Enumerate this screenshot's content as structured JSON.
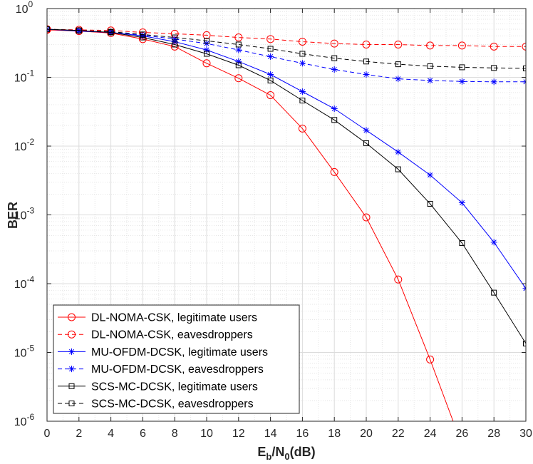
{
  "chart_data": {
    "type": "line",
    "title": "",
    "xlabel": {
      "base": "E",
      "sub1": "b",
      "mid": "/N",
      "sub2": "0",
      "tail": "(dB)"
    },
    "ylabel": "BER",
    "xlim": [
      0,
      30
    ],
    "ylim": [
      1e-06,
      1
    ],
    "yscale": "log",
    "grid": "on (major and minor)",
    "legend_position": "bottom-left",
    "x_ticks": [
      "0",
      "2",
      "4",
      "6",
      "8",
      "10",
      "12",
      "14",
      "16",
      "18",
      "20",
      "22",
      "24",
      "26",
      "28",
      "30"
    ],
    "y_ticks": [
      {
        "base": "10",
        "exp": "0"
      },
      {
        "base": "10",
        "exp": "-1"
      },
      {
        "base": "10",
        "exp": "-2"
      },
      {
        "base": "10",
        "exp": "-3"
      },
      {
        "base": "10",
        "exp": "-4"
      },
      {
        "base": "10",
        "exp": "-5"
      },
      {
        "base": "10",
        "exp": "-6"
      }
    ],
    "series": [
      {
        "name": "DL-NOMA-CSK, legitimate users",
        "color": "#ff0000",
        "dash": "solid",
        "marker": "circle",
        "x": [
          0,
          2,
          4,
          6,
          8,
          10,
          12,
          14,
          16,
          18,
          20,
          22,
          24,
          26
        ],
        "y": [
          0.49,
          0.47,
          0.44,
          0.36,
          0.28,
          0.16,
          0.097,
          0.055,
          0.018,
          0.0042,
          0.00092,
          0.000115,
          7.9e-06,
          4.5e-07
        ]
      },
      {
        "name": "DL-NOMA-CSK, eavesdroppers",
        "color": "#ff0000",
        "dash": "dashed",
        "marker": "circle",
        "x": [
          0,
          2,
          4,
          6,
          8,
          10,
          12,
          14,
          16,
          18,
          20,
          22,
          24,
          26,
          28,
          30
        ],
        "y": [
          0.5,
          0.49,
          0.48,
          0.45,
          0.43,
          0.41,
          0.38,
          0.36,
          0.33,
          0.31,
          0.3,
          0.3,
          0.29,
          0.29,
          0.28,
          0.28
        ]
      },
      {
        "name": "MU-OFDM-DCSK, legitimate users",
        "color": "#0000ff",
        "dash": "solid",
        "marker": "asterisk",
        "x": [
          0,
          2,
          4,
          6,
          8,
          10,
          12,
          14,
          16,
          18,
          20,
          22,
          24,
          26,
          28,
          30
        ],
        "y": [
          0.5,
          0.47,
          0.45,
          0.4,
          0.33,
          0.25,
          0.17,
          0.11,
          0.062,
          0.035,
          0.017,
          0.0082,
          0.0038,
          0.0015,
          0.0004,
          8.5e-05
        ]
      },
      {
        "name": "MU-OFDM-DCSK, eavesdroppers",
        "color": "#0000ff",
        "dash": "dashed",
        "marker": "asterisk",
        "x": [
          0,
          2,
          4,
          6,
          8,
          10,
          12,
          14,
          16,
          18,
          20,
          22,
          24,
          26,
          28,
          30
        ],
        "y": [
          0.5,
          0.48,
          0.46,
          0.41,
          0.36,
          0.31,
          0.25,
          0.2,
          0.16,
          0.13,
          0.11,
          0.095,
          0.09,
          0.087,
          0.086,
          0.086
        ]
      },
      {
        "name": "SCS-MC-DCSK, legitimate users",
        "color": "#000000",
        "dash": "solid",
        "marker": "square",
        "x": [
          0,
          2,
          4,
          6,
          8,
          10,
          12,
          14,
          16,
          18,
          20,
          22,
          24,
          26,
          28,
          30
        ],
        "y": [
          0.5,
          0.48,
          0.45,
          0.38,
          0.3,
          0.22,
          0.15,
          0.09,
          0.046,
          0.024,
          0.011,
          0.0046,
          0.00145,
          0.00039,
          7.4e-05,
          1.35e-05
        ]
      },
      {
        "name": "SCS-MC-DCSK, eavesdroppers",
        "color": "#000000",
        "dash": "dashed",
        "marker": "square",
        "x": [
          0,
          2,
          4,
          6,
          8,
          10,
          12,
          14,
          16,
          18,
          20,
          22,
          24,
          26,
          28,
          30
        ],
        "y": [
          0.5,
          0.48,
          0.46,
          0.42,
          0.38,
          0.34,
          0.3,
          0.26,
          0.22,
          0.19,
          0.17,
          0.155,
          0.145,
          0.14,
          0.137,
          0.135
        ]
      }
    ]
  }
}
